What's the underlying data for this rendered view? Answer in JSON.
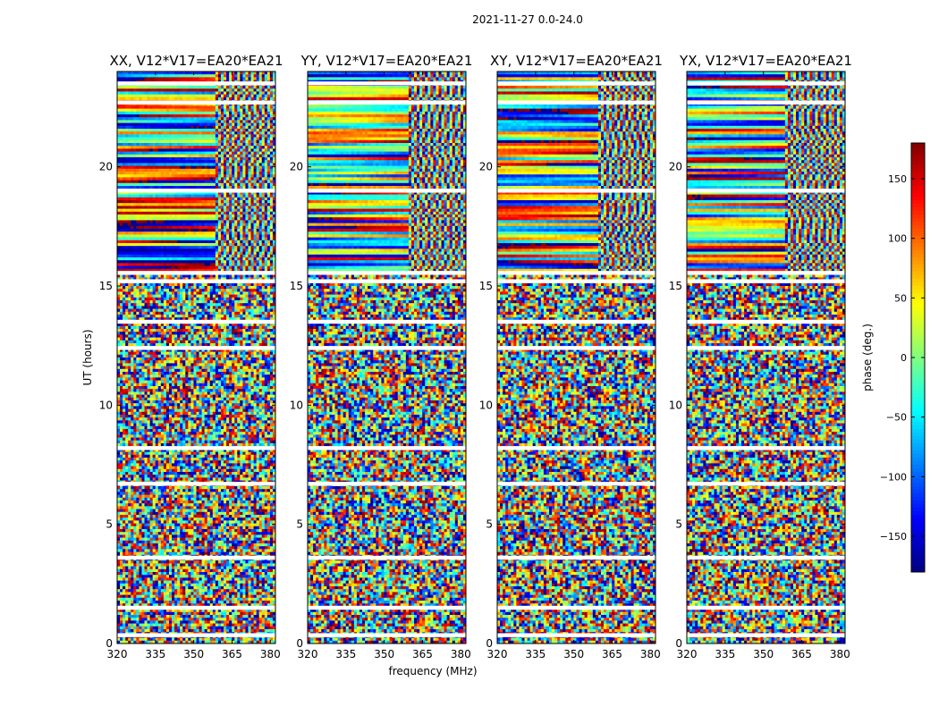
{
  "chart_data": {
    "type": "heatmap",
    "suptitle": "2021-11-27 0.0-24.0",
    "xlabel": "frequency (MHz)",
    "ylabel": "UT (hours)",
    "xlim": [
      320,
      382
    ],
    "ylim": [
      0,
      24
    ],
    "xticks": [
      320,
      335,
      350,
      365,
      380
    ],
    "yticks": [
      0,
      5,
      10,
      15,
      20
    ],
    "panels": [
      {
        "title": "XX, V12*V17=EA20*EA21",
        "seed": 11
      },
      {
        "title": "YY, V12*V17=EA20*EA21",
        "seed": 23
      },
      {
        "title": "XY, V12*V17=EA20*EA21",
        "seed": 37
      },
      {
        "title": "YX, V12*V17=EA20*EA21",
        "seed": 51
      }
    ],
    "colorbar": {
      "label": "phase (deg.)",
      "range": [
        -180,
        180
      ],
      "ticks": [
        150,
        100,
        50,
        0,
        -50,
        -100,
        -150
      ],
      "colormap": "jet"
    },
    "segments": [
      {
        "u0": 0.0,
        "u1": 15.5,
        "mode": "noise"
      },
      {
        "u0": 15.5,
        "u1": 24.0,
        "mode": "coherent"
      }
    ],
    "gaps_ut": [
      0.35,
      1.5,
      3.6,
      6.7,
      8.2,
      12.4,
      13.5,
      15.2,
      15.55,
      19.0,
      22.7,
      23.5
    ]
  }
}
